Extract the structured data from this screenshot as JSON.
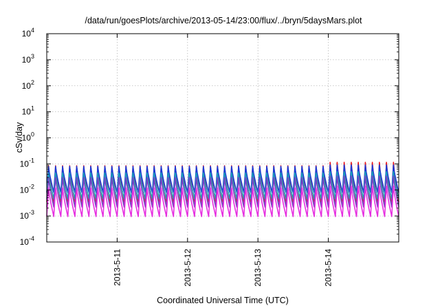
{
  "chart_data": {
    "type": "line",
    "title": "/data/run/goesPlots/archive/2013-05-14/23:00/flux/../bryn/5daysMars.plot",
    "xlabel": "Coordinated Universal Time (UTC)",
    "ylabel": "cSv/day",
    "yscale": "log",
    "ylim": [
      0.0001,
      10000
    ],
    "xlim": [
      "2013-05-10 00:00",
      "2013-05-15 00:00"
    ],
    "grid": true,
    "legend": "none",
    "x_ticks": [
      "2013-5-11",
      "2013-5-12",
      "2013-5-13",
      "2013-5-14"
    ],
    "y_ticks": [
      {
        "base": "10",
        "exp": "-4"
      },
      {
        "base": "10",
        "exp": "-3"
      },
      {
        "base": "10",
        "exp": "-2"
      },
      {
        "base": "10",
        "exp": "-1"
      },
      {
        "base": "10",
        "exp": "0"
      },
      {
        "base": "10",
        "exp": "1"
      },
      {
        "base": "10",
        "exp": "2"
      },
      {
        "base": "10",
        "exp": "3"
      },
      {
        "base": "10",
        "exp": "4"
      }
    ],
    "oscillation": {
      "cycles": 50,
      "period_hours": 2.4
    },
    "series": [
      {
        "color": "#e8151b",
        "peak": 0.085,
        "trough": 0.0034,
        "late_peak": 0.115
      },
      {
        "color": "#1a3bd6",
        "peak": 0.08,
        "trough": 0.008,
        "late_peak": 0.09
      },
      {
        "color": "#17a7b8",
        "peak": 0.045,
        "trough": 0.0045,
        "late_peak": 0.05
      },
      {
        "color": "#7a3fc4",
        "peak": 0.03,
        "trough": 0.0022,
        "late_peak": 0.034
      },
      {
        "color": "#e62ee0",
        "peak": 0.012,
        "trough": 0.00095,
        "late_peak": 0.014
      }
    ]
  }
}
